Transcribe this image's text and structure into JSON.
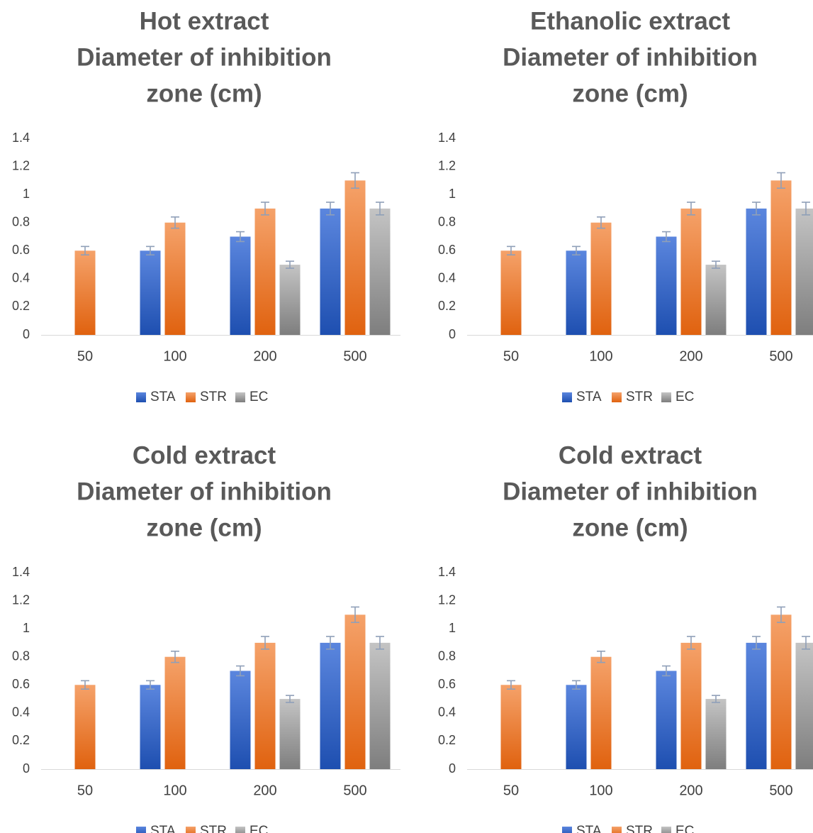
{
  "chart_data": [
    {
      "type": "bar",
      "title_lines": [
        "Hot extract",
        "Diameter of inhibition",
        "zone (cm)"
      ],
      "categories": [
        "50",
        "100",
        "200",
        "500"
      ],
      "series": [
        {
          "name": "STA",
          "values": [
            null,
            0.6,
            0.7,
            0.9
          ],
          "errors": [
            null,
            0.03,
            0.035,
            0.045
          ]
        },
        {
          "name": "STR",
          "values": [
            0.6,
            0.8,
            0.9,
            1.1
          ],
          "errors": [
            0.03,
            0.04,
            0.045,
            0.055
          ]
        },
        {
          "name": "EC",
          "values": [
            null,
            null,
            0.5,
            0.9
          ],
          "errors": [
            null,
            null,
            0.025,
            0.045
          ]
        }
      ],
      "yticks": [
        "0",
        "0.2",
        "0.4",
        "0.6",
        "0.8",
        "1",
        "1.2",
        "1.4"
      ],
      "ylim": [
        0,
        1.4
      ],
      "legend": "bottom",
      "grid": false
    },
    {
      "type": "bar",
      "title_lines": [
        "Ethanolic extract",
        "Diameter of inhibition",
        "zone (cm)"
      ],
      "categories": [
        "50",
        "100",
        "200",
        "500"
      ],
      "series": [
        {
          "name": "STA",
          "values": [
            null,
            0.6,
            0.7,
            0.9
          ],
          "errors": [
            null,
            0.03,
            0.035,
            0.045
          ]
        },
        {
          "name": "STR",
          "values": [
            0.6,
            0.8,
            0.9,
            1.1
          ],
          "errors": [
            0.03,
            0.04,
            0.045,
            0.055
          ]
        },
        {
          "name": "EC",
          "values": [
            null,
            null,
            0.5,
            0.9
          ],
          "errors": [
            null,
            null,
            0.025,
            0.045
          ]
        }
      ],
      "yticks": [
        "0",
        "0.2",
        "0.4",
        "0.6",
        "0.8",
        "1",
        "1.2",
        "1.4"
      ],
      "ylim": [
        0,
        1.4
      ],
      "legend": "bottom",
      "grid": false
    },
    {
      "type": "bar",
      "title_lines": [
        "Cold extract",
        "Diameter of inhibition",
        "zone (cm)"
      ],
      "categories": [
        "50",
        "100",
        "200",
        "500"
      ],
      "series": [
        {
          "name": "STA",
          "values": [
            null,
            0.6,
            0.7,
            0.9
          ],
          "errors": [
            null,
            0.03,
            0.035,
            0.045
          ]
        },
        {
          "name": "STR",
          "values": [
            0.6,
            0.8,
            0.9,
            1.1
          ],
          "errors": [
            0.03,
            0.04,
            0.045,
            0.055
          ]
        },
        {
          "name": "EC",
          "values": [
            null,
            null,
            0.5,
            0.9
          ],
          "errors": [
            null,
            null,
            0.025,
            0.045
          ]
        }
      ],
      "yticks": [
        "0",
        "0.2",
        "0.4",
        "0.6",
        "0.8",
        "1",
        "1.2",
        "1.4"
      ],
      "ylim": [
        0,
        1.4
      ],
      "legend": "bottom",
      "grid": false
    },
    {
      "type": "bar",
      "title_lines": [
        "Cold extract",
        "Diameter of inhibition",
        "zone (cm)"
      ],
      "categories": [
        "50",
        "100",
        "200",
        "500"
      ],
      "series": [
        {
          "name": "STA",
          "values": [
            null,
            0.6,
            0.7,
            0.9
          ],
          "errors": [
            null,
            0.03,
            0.035,
            0.045
          ]
        },
        {
          "name": "STR",
          "values": [
            0.6,
            0.8,
            0.9,
            1.1
          ],
          "errors": [
            0.03,
            0.04,
            0.045,
            0.055
          ]
        },
        {
          "name": "EC",
          "values": [
            null,
            null,
            0.5,
            0.9
          ],
          "errors": [
            null,
            null,
            0.025,
            0.045
          ]
        }
      ],
      "yticks": [
        "0",
        "0.2",
        "0.4",
        "0.6",
        "0.8",
        "1",
        "1.2",
        "1.4"
      ],
      "ylim": [
        0,
        1.4
      ],
      "legend": "bottom",
      "grid": false
    }
  ],
  "colors": {
    "STA": [
      "#5b86de",
      "#1e4fb0"
    ],
    "STR": [
      "#f5a26a",
      "#e0620f"
    ],
    "EC": [
      "#c4c4c4",
      "#7e7e7e"
    ],
    "text": "#404040",
    "title": "#595959",
    "axis": "#d9d9d9",
    "error": "#8f9fb8"
  }
}
